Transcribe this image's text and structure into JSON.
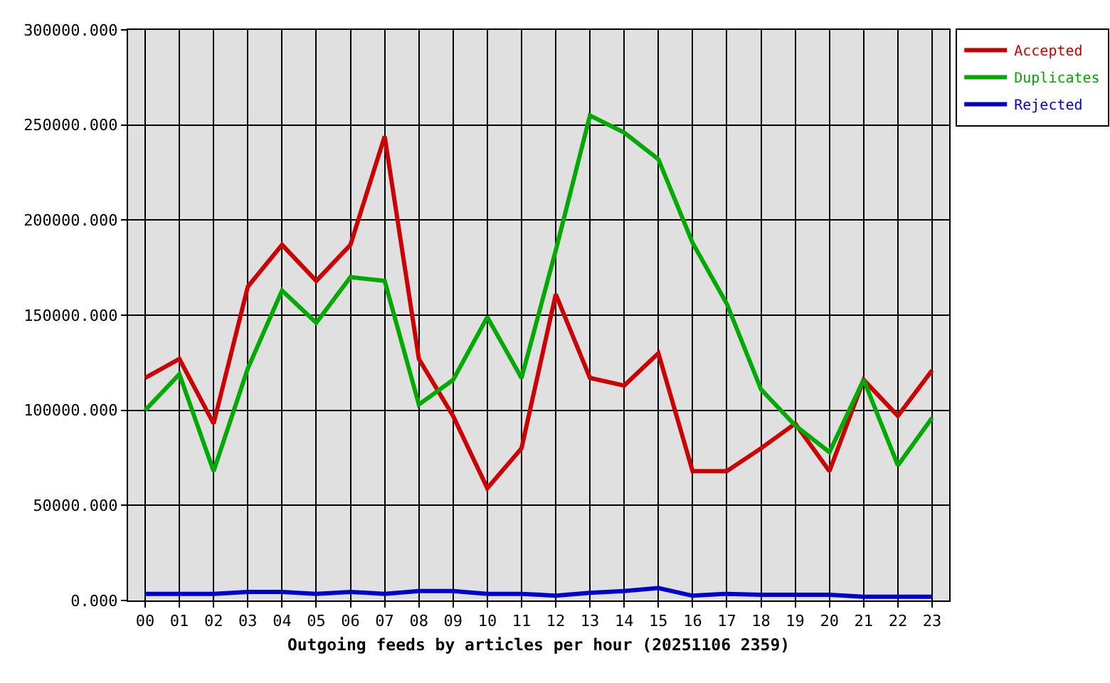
{
  "chart_data": {
    "type": "line",
    "xlabel": "Outgoing feeds by articles per hour (20251106 2359)",
    "categories": [
      "00",
      "01",
      "02",
      "03",
      "04",
      "05",
      "06",
      "07",
      "08",
      "09",
      "10",
      "11",
      "12",
      "13",
      "14",
      "15",
      "16",
      "17",
      "18",
      "19",
      "20",
      "21",
      "22",
      "23"
    ],
    "series": [
      {
        "name": "Accepted",
        "color": "#cc0000",
        "values": [
          117000,
          127000,
          93000,
          165000,
          187000,
          168000,
          187000,
          244000,
          127000,
          97000,
          59000,
          80000,
          161000,
          117000,
          113000,
          130000,
          68000,
          68000,
          80000,
          93000,
          68000,
          116000,
          97000,
          121000
        ]
      },
      {
        "name": "Duplicates",
        "color": "#00aa00",
        "values": [
          100000,
          119000,
          68000,
          122000,
          163000,
          146000,
          170000,
          168000,
          103000,
          116000,
          149000,
          117000,
          184000,
          255000,
          246000,
          232000,
          188000,
          156000,
          111000,
          92000,
          78000,
          116000,
          71000,
          96000
        ]
      },
      {
        "name": "Rejected",
        "color": "#0000cc",
        "values": [
          3500,
          3500,
          3500,
          4500,
          4500,
          3500,
          4500,
          3500,
          5000,
          5000,
          3500,
          3500,
          2500,
          4000,
          5000,
          6500,
          2500,
          3500,
          3000,
          3000,
          3000,
          2000,
          2000,
          2000
        ]
      }
    ],
    "ylim": [
      0,
      300000
    ],
    "yticks": [
      {
        "value": 0,
        "label": "0.000"
      },
      {
        "value": 50000,
        "label": "50000.000"
      },
      {
        "value": 100000,
        "label": "100000.000"
      },
      {
        "value": 150000,
        "label": "150000.000"
      },
      {
        "value": 200000,
        "label": "200000.000"
      },
      {
        "value": 250000,
        "label": "250000.000"
      },
      {
        "value": 300000,
        "label": "300000.000"
      }
    ],
    "grid": true,
    "legend": "top right"
  }
}
